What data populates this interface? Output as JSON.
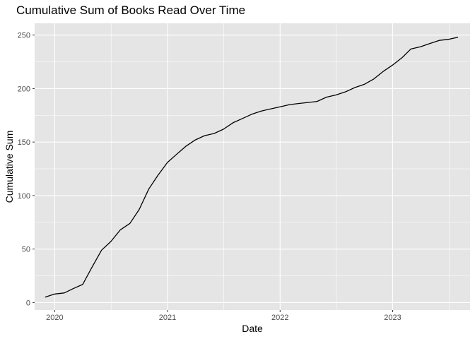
{
  "chart_data": {
    "type": "line",
    "title": "Cumulative Sum of Books Read Over Time",
    "xlabel": "Date",
    "ylabel": "Cumulative Sum",
    "x_ticks": [
      "2020",
      "2021",
      "2022",
      "2023"
    ],
    "y_ticks": [
      0,
      50,
      100,
      150,
      200,
      250
    ],
    "xlim": [
      "2019-10-28",
      "2023-09-09"
    ],
    "ylim": [
      -7,
      261
    ],
    "grid": true,
    "background_color": "#e5e5e5",
    "grid_color": "#ffffff",
    "line_color": "#000000",
    "series": [
      {
        "x": [
          "2019-12-01",
          "2020-01-01",
          "2020-02-01",
          "2020-03-01",
          "2020-04-01",
          "2020-05-01",
          "2020-06-01",
          "2020-07-01",
          "2020-08-01",
          "2020-09-01",
          "2020-10-01",
          "2020-11-01",
          "2020-12-01",
          "2021-01-01",
          "2021-02-01",
          "2021-03-01",
          "2021-04-01",
          "2021-05-01",
          "2021-06-01",
          "2021-07-01",
          "2021-08-01",
          "2021-09-01",
          "2021-10-01",
          "2021-11-01",
          "2021-12-01",
          "2022-01-01",
          "2022-02-01",
          "2022-03-01",
          "2022-04-01",
          "2022-05-01",
          "2022-06-01",
          "2022-07-01",
          "2022-08-01",
          "2022-09-01",
          "2022-10-01",
          "2022-11-01",
          "2022-12-01",
          "2023-01-01",
          "2023-02-01",
          "2023-03-01",
          "2023-04-01",
          "2023-05-01",
          "2023-06-01",
          "2023-07-01",
          "2023-08-01"
        ],
        "values": [
          5,
          8,
          9,
          13,
          17,
          33,
          49,
          57,
          68,
          74,
          87,
          106,
          119,
          131,
          139,
          146,
          152,
          156,
          158,
          162,
          168,
          172,
          176,
          179,
          181,
          183,
          185,
          186,
          187,
          188,
          192,
          194,
          197,
          201,
          204,
          209,
          216,
          222,
          229,
          237,
          239,
          242,
          245,
          246,
          248
        ]
      }
    ]
  }
}
